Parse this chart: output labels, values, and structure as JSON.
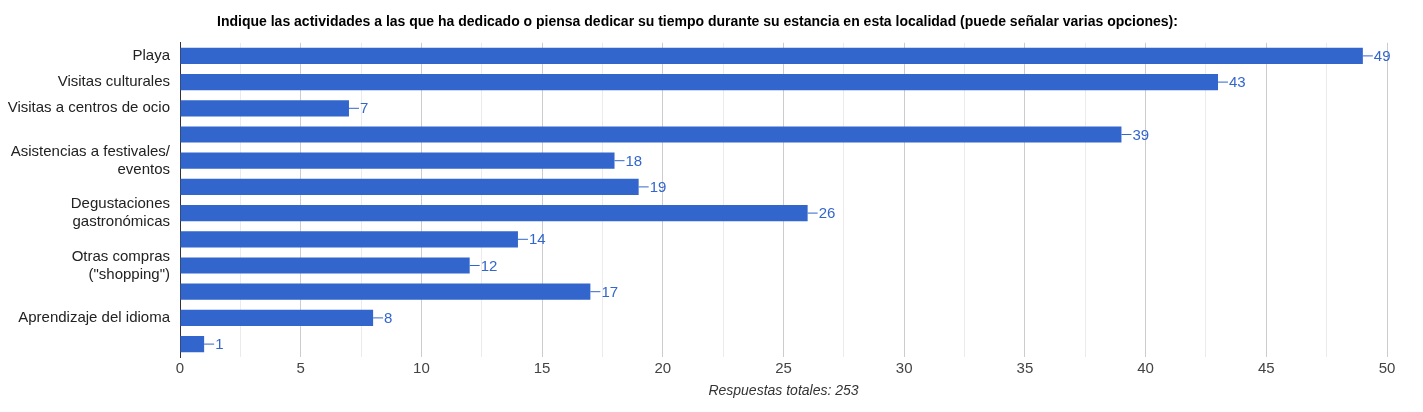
{
  "chart_data": {
    "type": "bar",
    "orientation": "horizontal",
    "title": "Indique las actividades a las que ha dedicado o piensa dedicar su tiempo durante su estancia en esta localidad (puede señalar varias opciones):",
    "xlabel": "Respuestas totales: 253",
    "categories": [
      "Playa",
      "Visitas culturales",
      "Visitas a centros de ocio",
      null,
      "Asistencias a festivales/ eventos",
      null,
      "Degustaciones gastronómicas",
      null,
      "Otras compras (\"shopping\")",
      null,
      "Aprendizaje del idioma",
      null
    ],
    "values": [
      49,
      43,
      7,
      39,
      18,
      19,
      26,
      14,
      12,
      17,
      8,
      1
    ],
    "color": "#3366cc",
    "xlim": [
      0,
      50
    ],
    "xticks": [
      0,
      {
        "value": 2.5,
        "label": null
      },
      5,
      {
        "value": 7.5,
        "label": null
      },
      10,
      {
        "value": 12.5,
        "label": null
      },
      15,
      {
        "value": 17.5,
        "label": null
      },
      20,
      {
        "value": 22.5,
        "label": null
      },
      25,
      {
        "value": 27.5,
        "label": null
      },
      30,
      {
        "value": 32.5,
        "label": null
      },
      35,
      {
        "value": 37.5,
        "label": null
      },
      40,
      {
        "value": 42.5,
        "label": null
      },
      45,
      {
        "value": 47.5,
        "label": null
      },
      50
    ],
    "grid": "x",
    "legend": false,
    "data_labels": true
  }
}
